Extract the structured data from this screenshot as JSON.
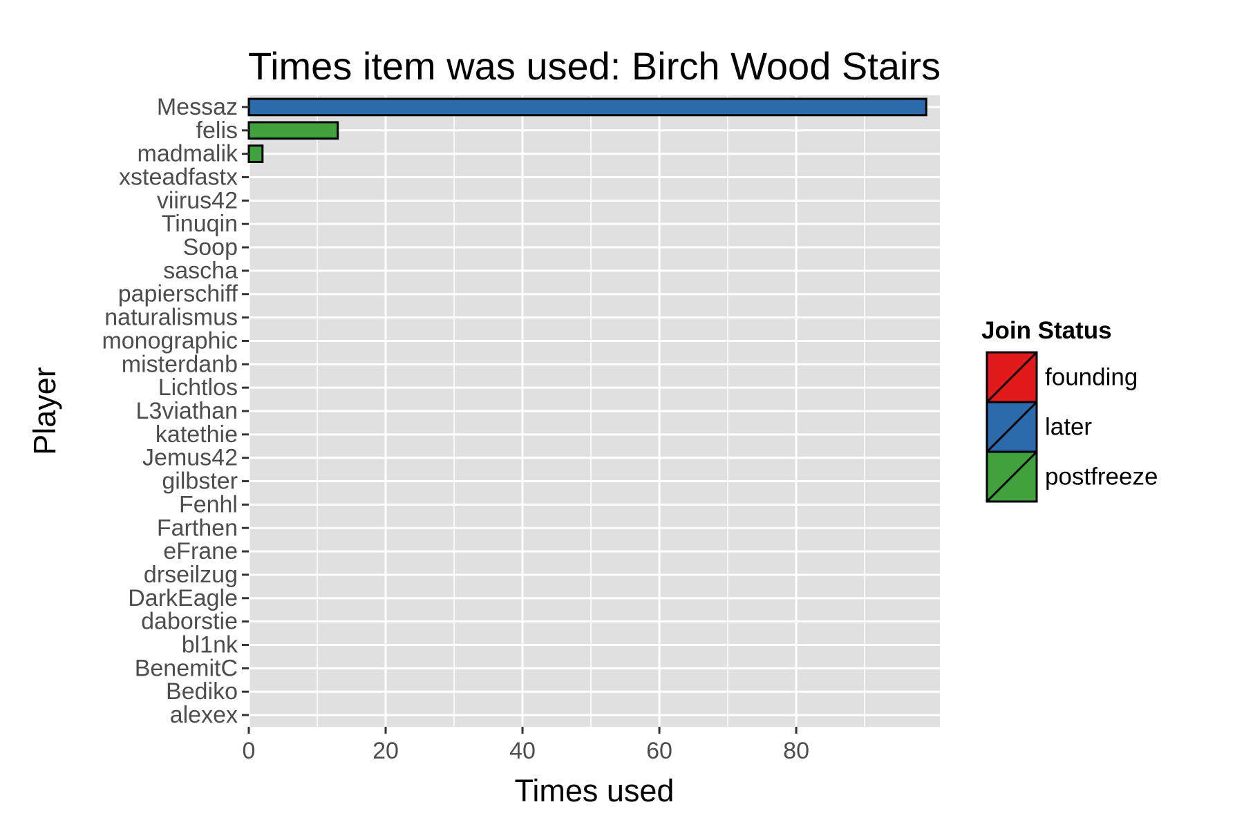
{
  "chart_data": {
    "type": "bar",
    "orientation": "horizontal",
    "title": "Times item was used: Birch Wood Stairs",
    "xlabel": "Times used",
    "ylabel": "Player",
    "xlim": [
      0,
      101
    ],
    "xticks": [
      0,
      20,
      40,
      60,
      80
    ],
    "grid": true,
    "legend_position": "right",
    "legend": {
      "title": "Join Status",
      "entries": [
        {
          "name": "founding",
          "color": "#e31a1c"
        },
        {
          "name": "later",
          "color": "#2b6aab"
        },
        {
          "name": "postfreeze",
          "color": "#3fa23c"
        }
      ]
    },
    "categories": [
      "Messaz",
      "felis",
      "madmalik",
      "xsteadfastx",
      "viirus42",
      "Tinuqin",
      "Soop",
      "sascha",
      "papierschiff",
      "naturalismus",
      "monographic",
      "misterdanb",
      "Lichtlos",
      "L3viathan",
      "katethie",
      "Jemus42",
      "gilbster",
      "Fenhl",
      "Farthen",
      "eFrane",
      "drseilzug",
      "DarkEagle",
      "daborstie",
      "bl1nk",
      "BenemitC",
      "Bediko",
      "alexex"
    ],
    "values": [
      99,
      13,
      2,
      0,
      0,
      0,
      0,
      0,
      0,
      0,
      0,
      0,
      0,
      0,
      0,
      0,
      0,
      0,
      0,
      0,
      0,
      0,
      0,
      0,
      0,
      0,
      0
    ],
    "groups": [
      "later",
      "postfreeze",
      "postfreeze",
      "",
      "",
      "",
      "",
      "",
      "",
      "",
      "",
      "",
      "",
      "",
      "",
      "",
      "",
      "",
      "",
      "",
      "",
      "",
      "",
      "",
      "",
      "",
      ""
    ]
  },
  "colors": {
    "panel_background": "#e0e0e0",
    "grid": "#ffffff",
    "bar_outline": "#000000",
    "tick_text": "#4d4d4d"
  }
}
